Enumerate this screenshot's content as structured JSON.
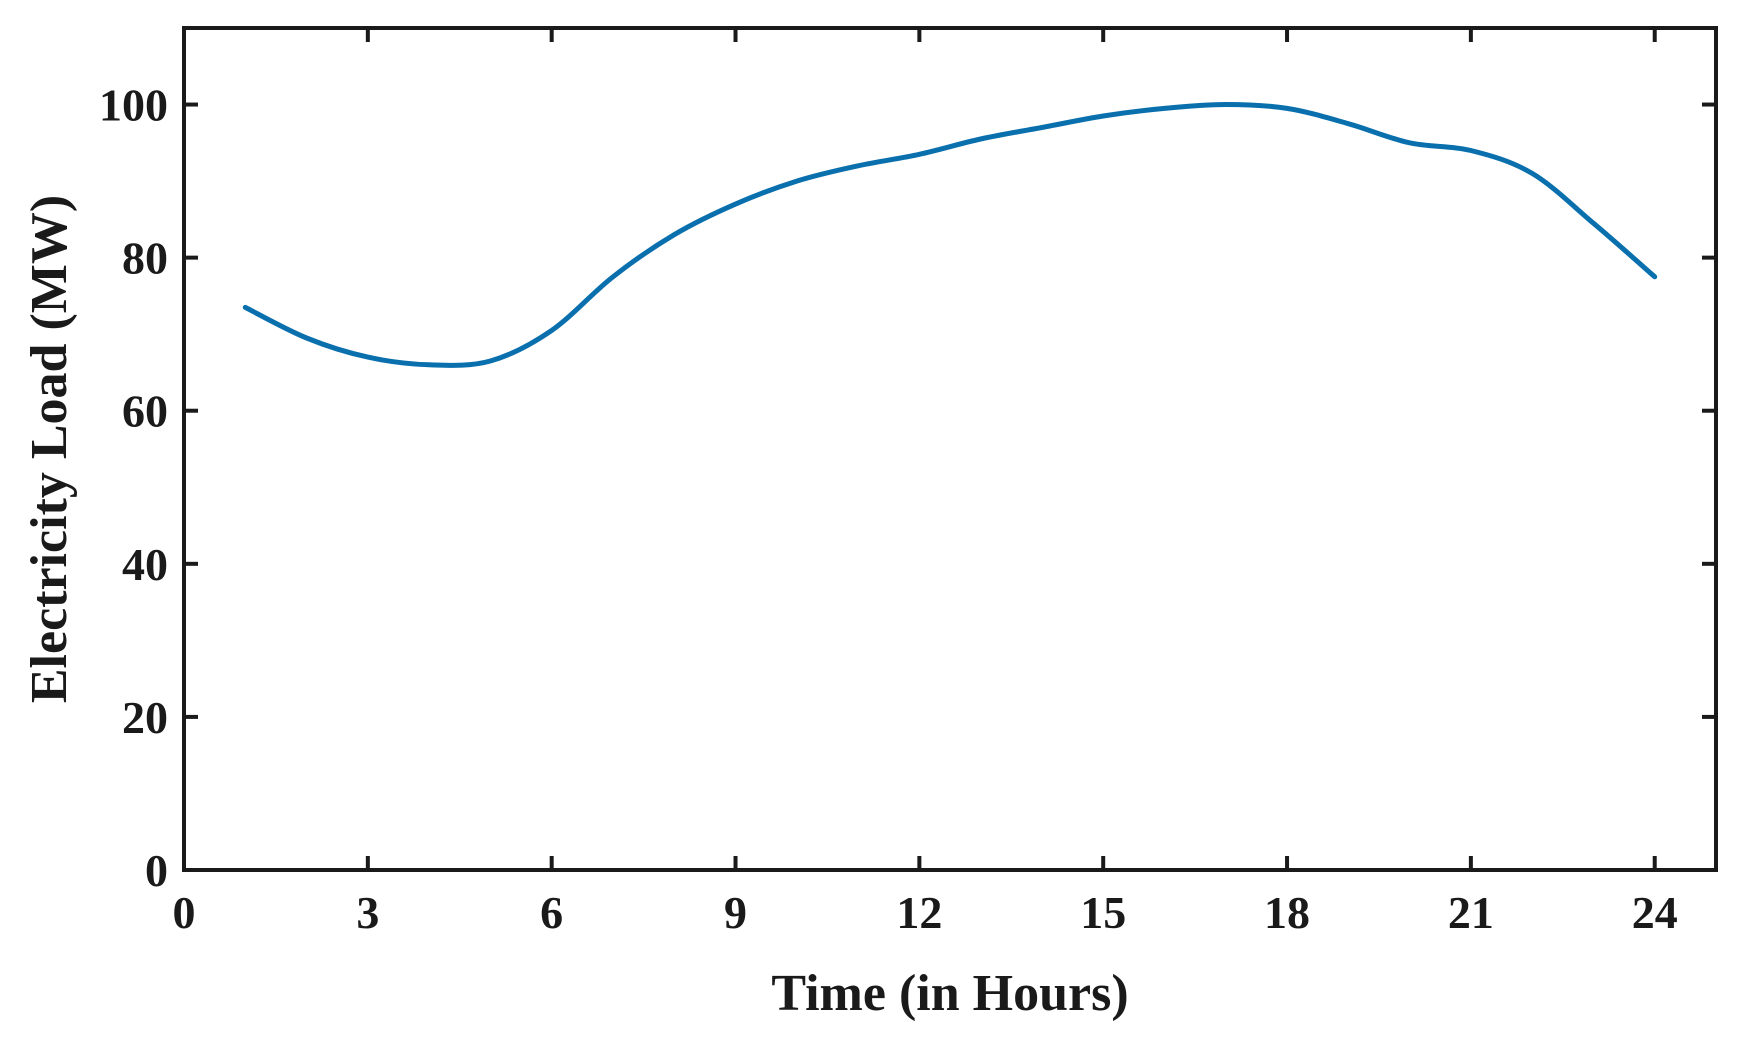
{
  "chart_data": {
    "type": "line",
    "title": "",
    "xlabel": "Time (in Hours)",
    "ylabel": "Electricity Load (MW)",
    "xlim": [
      0,
      25
    ],
    "ylim": [
      0,
      110
    ],
    "x_ticks": [
      0,
      3,
      6,
      9,
      12,
      15,
      18,
      21,
      24
    ],
    "y_ticks": [
      0,
      20,
      40,
      60,
      80,
      100
    ],
    "grid": false,
    "legend": "none",
    "series": [
      {
        "color": "#0a6fad",
        "x": [
          1,
          2,
          3,
          4,
          5,
          6,
          7,
          8,
          9,
          10,
          11,
          12,
          13,
          14,
          15,
          16,
          17,
          18,
          19,
          20,
          21,
          22,
          23,
          24
        ],
        "y": [
          73.5,
          69.5,
          67,
          66,
          66.5,
          70.5,
          77.5,
          83,
          87,
          90,
          92,
          93.5,
          95.5,
          97,
          98.5,
          99.5,
          100,
          99.5,
          97.5,
          95,
          94,
          91,
          84.5,
          77.5
        ]
      }
    ]
  }
}
